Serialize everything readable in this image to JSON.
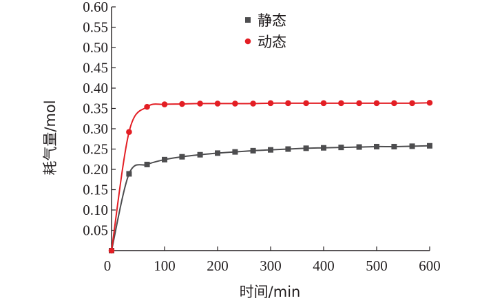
{
  "chart_data": {
    "type": "scatter",
    "xlabel": "时间/min",
    "ylabel": "耗气量/mol",
    "xlim": [
      0,
      600
    ],
    "ylim": [
      0,
      0.6
    ],
    "x_ticks": [
      "0",
      "100",
      "200",
      "300",
      "400",
      "500",
      "600"
    ],
    "y_ticks": [
      "0.05",
      "0.10",
      "0.15",
      "0.20",
      "0.25",
      "0.30",
      "0.35",
      "0.40",
      "0.45",
      "0.50",
      "0.55",
      "0.60"
    ],
    "grid": false,
    "legend_position": "top-center",
    "series": [
      {
        "name": "静态",
        "marker": "square",
        "color": "#4d4d4f",
        "points": [
          [
            0,
            0.0
          ],
          [
            33,
            0.189
          ],
          [
            67,
            0.212
          ],
          [
            100,
            0.224
          ],
          [
            133,
            0.231
          ],
          [
            167,
            0.236
          ],
          [
            200,
            0.24
          ],
          [
            233,
            0.243
          ],
          [
            267,
            0.246
          ],
          [
            300,
            0.248
          ],
          [
            333,
            0.25
          ],
          [
            367,
            0.252
          ],
          [
            400,
            0.253
          ],
          [
            433,
            0.254
          ],
          [
            467,
            0.255
          ],
          [
            500,
            0.256
          ],
          [
            533,
            0.256
          ],
          [
            567,
            0.257
          ],
          [
            600,
            0.258
          ]
        ]
      },
      {
        "name": "动态",
        "marker": "circle",
        "color": "#e31e24",
        "points": [
          [
            0,
            0.0
          ],
          [
            33,
            0.292
          ],
          [
            67,
            0.354
          ],
          [
            100,
            0.36
          ],
          [
            133,
            0.361
          ],
          [
            167,
            0.362
          ],
          [
            200,
            0.362
          ],
          [
            233,
            0.362
          ],
          [
            267,
            0.362
          ],
          [
            300,
            0.363
          ],
          [
            333,
            0.363
          ],
          [
            367,
            0.363
          ],
          [
            400,
            0.363
          ],
          [
            433,
            0.363
          ],
          [
            467,
            0.363
          ],
          [
            500,
            0.363
          ],
          [
            533,
            0.363
          ],
          [
            567,
            0.363
          ],
          [
            600,
            0.364
          ]
        ]
      }
    ]
  }
}
